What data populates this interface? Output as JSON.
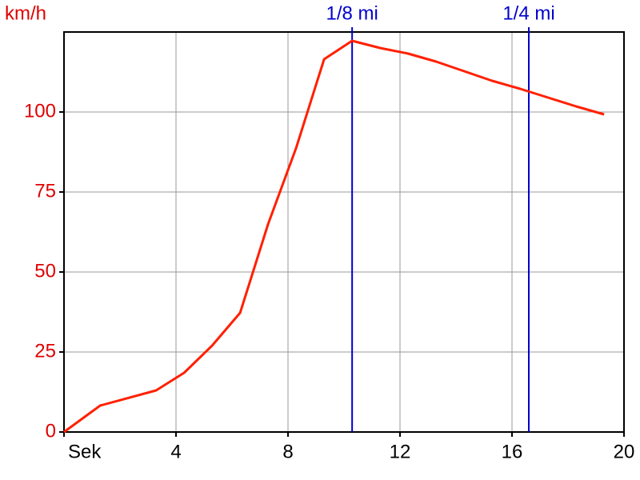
{
  "chart_data": {
    "type": "line",
    "y_label": "km/h",
    "x": [
      0,
      1.29,
      3.29,
      4.29,
      5.29,
      6.29,
      7.29,
      8.29,
      9.29,
      10.29,
      11.29,
      12.29,
      13.29,
      14.29,
      15.29,
      16.29,
      17.29,
      18.29,
      19.29
    ],
    "series": [
      {
        "color": "#ff2000",
        "values": [
          0,
          8.25,
          13,
          18.5,
          27,
          37.25,
          65,
          88.75,
          116.5,
          122.25,
          120,
          118.25,
          115.75,
          112.75,
          109.75,
          107.25,
          104.5,
          101.75,
          99.25
        ]
      }
    ],
    "xlim": [
      0,
      20
    ],
    "xticks": [
      {
        "value": 0,
        "label": "Sek"
      },
      4,
      8,
      12,
      16,
      20
    ],
    "ylim": [
      0,
      125
    ],
    "yticks": [
      0,
      25,
      50,
      75,
      100
    ],
    "grid": true,
    "axis_label_color": "#e00000",
    "markers": [
      {
        "label": "1/8 mi",
        "x": 10.29,
        "color": "#0000cc"
      },
      {
        "label": "1/4 mi",
        "x": 16.6,
        "color": "#0000cc"
      }
    ]
  }
}
